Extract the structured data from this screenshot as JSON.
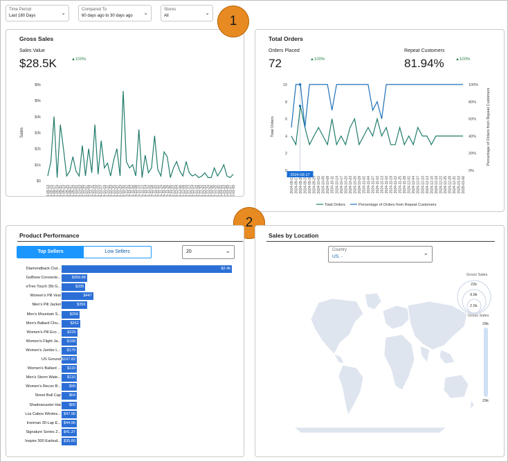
{
  "filters": [
    {
      "label": "Time Period",
      "value": "Last 180 Days"
    },
    {
      "label": "Compared To",
      "value": "60 days ago to 30 days ago"
    },
    {
      "label": "Stores",
      "value": "All"
    }
  ],
  "callouts": [
    "1",
    "2"
  ],
  "gross_sales": {
    "title": "Gross Sales",
    "metric_label": "Sales Value",
    "metric_value": "$28.5K",
    "delta": "▲100%",
    "y_label": "Sales"
  },
  "total_orders": {
    "title": "Total Orders",
    "orders_label": "Orders Placed",
    "orders_value": "72",
    "orders_delta": "▲100%",
    "repeat_label": "Repeat Customers",
    "repeat_value": "81.94%",
    "repeat_delta": "▲100%",
    "y_left_label": "Total Orders",
    "y_right_label": "Percentage of Orders from Repeat Customers",
    "tooltip": "2024-09-17",
    "legend": [
      "Total Orders",
      "Percentage of Orders from Repeat Customers"
    ]
  },
  "product_performance": {
    "title": "Product Performance",
    "tab_top": "Top Sellers",
    "tab_low": "Low Sellers",
    "count": "20",
    "items": [
      {
        "name": "Diamondback Clut...",
        "label": "$2.4k",
        "value": 2400
      },
      {
        "name": "GoBrew Connecte...",
        "label": "$359.88",
        "value": 359.88
      },
      {
        "name": "eTrex Touch 35t G...",
        "label": "$335",
        "value": 335
      },
      {
        "name": "Women's Pill Vest",
        "label": "$447",
        "value": 447
      },
      {
        "name": "Men's Pill Jacket",
        "label": "$356",
        "value": 356
      },
      {
        "name": "Men's Mountain S...",
        "label": "$256",
        "value": 256
      },
      {
        "name": "Men's Ballard Chu...",
        "label": "$262",
        "value": 262
      },
      {
        "name": "Women's Pill Eco ...",
        "label": "$220",
        "value": 220
      },
      {
        "name": "Women's Flight Ja...",
        "label": "$199",
        "value": 199
      },
      {
        "name": "Women's Jumbo L...",
        "label": "$179",
        "value": 179
      },
      {
        "name": "US Ground",
        "label": "$167.82",
        "value": 167.82
      },
      {
        "name": "Women's Ballard ...",
        "label": "$110",
        "value": 110
      },
      {
        "name": "Men's Storm Wate...",
        "label": "$110",
        "value": 110
      },
      {
        "name": "Women's Recon B...",
        "label": "$99",
        "value": 99
      },
      {
        "name": "Street Ball Cap",
        "label": "$64",
        "value": 64
      },
      {
        "name": "Shadowcaster Hat",
        "label": "$60",
        "value": 60
      },
      {
        "name": "Los Cabos Wireles...",
        "label": "$47.96",
        "value": 47.96
      },
      {
        "name": "Ironman 30-Lap E...",
        "label": "$44.96",
        "value": 44.96
      },
      {
        "name": "Signature Series 2...",
        "label": "$41.37",
        "value": 41.37
      },
      {
        "name": "Inspire 300 Earbud...",
        "label": "$35.80",
        "value": 35.8
      }
    ]
  },
  "sales_by_location": {
    "title": "Sales by Location",
    "country_label": "Country",
    "country_value": "US, -",
    "bubble_legend_title": "Gross Sales",
    "bubble_values": [
      "22k",
      "9.9k",
      "2.5k"
    ],
    "color_legend_title": "Gross Sales",
    "color_max": "29k",
    "color_min": "29k"
  },
  "chart_data": [
    {
      "type": "line",
      "title": "Gross Sales",
      "ylabel": "Sales",
      "y_ticks": [
        "$6k",
        "$5k",
        "$4k",
        "$3k",
        "$2k",
        "$1k",
        "$0"
      ],
      "y_tick_values": [
        6000,
        5000,
        4000,
        3000,
        2000,
        1000,
        0
      ],
      "ylim": [
        0,
        6000
      ],
      "x": [
        "2024-09-13",
        "2024-09-15",
        "2024-09-17",
        "2024-09-19",
        "2024-09-21",
        "2024-09-23",
        "2024-09-25",
        "2024-09-27",
        "2024-09-29",
        "2024-10-01",
        "2024-10-03",
        "2024-10-05",
        "2024-10-07",
        "2024-10-09",
        "2024-10-11",
        "2024-10-13",
        "2024-10-15",
        "2024-10-17",
        "2024-10-19",
        "2024-10-21",
        "2024-10-23",
        "2024-10-25",
        "2024-10-27",
        "2024-10-29",
        "2024-10-31",
        "2024-11-02",
        "2024-11-04",
        "2024-11-06",
        "2024-11-08",
        "2024-11-10",
        "2024-11-12",
        "2024-11-14",
        "2024-11-16",
        "2024-11-18",
        "2024-11-20",
        "2024-11-22",
        "2024-11-24",
        "2024-11-26",
        "2024-11-28",
        "2024-11-30",
        "2024-12-02",
        "2024-12-04",
        "2024-12-06",
        "2024-12-08",
        "2024-12-10",
        "2024-12-12",
        "2024-12-14",
        "2024-12-16",
        "2024-12-18",
        "2024-12-20",
        "2024-12-22",
        "2024-12-24",
        "2024-12-26",
        "2024-12-28",
        "2024-12-30",
        "2025-01-01",
        "2025-01-03",
        "2025-01-05",
        "2025-01-07",
        "2025-01-09"
      ],
      "x_tick_labels": [
        "2024-09-13",
        "2024-09-15",
        "2024-09-17",
        "2024-09-19",
        "2024-09-21",
        "2024-09-23",
        "2024-09-25",
        "2024-09-27",
        "2024-09-29",
        "2024-10-01",
        "2024-10-03",
        "2024-10-05",
        "2024-10-07",
        "2024-10-09",
        "2024-10-11",
        "2024-10-13",
        "2024-10-15",
        "2024-10-17",
        "2024-10-19",
        "2024-10-21",
        "2024-10-23",
        "2024-10-25",
        "2024-10-27",
        "2024-10-29",
        "2024-10-31",
        "2024-11-02",
        "2024-11-04",
        "2024-11-06",
        "2024-11-08",
        "2024-11-10",
        "2024-11-12",
        "2024-11-14",
        "2024-11-16",
        "2024-11-18",
        "2024-11-20",
        "2024-11-22",
        "2024-11-24",
        "2024-11-26",
        "2024-11-28",
        "2024-11-30",
        "2024-12-02",
        "2024-12-04",
        "2024-12-06",
        "2024-12-08",
        "2024-12-10",
        "2024-12-12",
        "2024-12-14",
        "2024-12-16",
        "2024-12-18",
        "2024-12-20",
        "2024-12-22",
        "2024-12-24",
        "2024-12-26",
        "2024-12-28",
        "2024-12-30",
        "2025-01-01",
        "2025-01-03",
        "2025-01-05",
        "2025-01-07",
        "2025-01-09"
      ],
      "series": [
        {
          "values": [
            300,
            1200,
            4000,
            200,
            3500,
            2000,
            300,
            600,
            1500,
            600,
            300,
            2200,
            300,
            2000,
            500,
            3500,
            400,
            2500,
            800,
            1100,
            300,
            1300,
            2000,
            300,
            5600,
            1200,
            800,
            1000,
            300,
            3200,
            200,
            1600,
            500,
            800,
            2800,
            700,
            300,
            1800,
            1500,
            200,
            800,
            1200,
            600,
            300,
            1200,
            500,
            300,
            400,
            200,
            300,
            500,
            200,
            200,
            800,
            300,
            600,
            1000,
            300,
            200,
            400
          ]
        }
      ],
      "grid": false
    },
    {
      "type": "line",
      "title": "Total Orders",
      "ylabel": "Total Orders",
      "y2label": "Percentage of Orders from Repeat Customers",
      "y_ticks": [
        "10",
        "8",
        "6",
        "4",
        "2",
        "0"
      ],
      "y_tick_values": [
        10,
        8,
        6,
        4,
        2,
        0
      ],
      "ylim": [
        0,
        10
      ],
      "y2_ticks": [
        "100%",
        "80%",
        "60%",
        "40%",
        "20%",
        "0%"
      ],
      "y2_tick_values": [
        100,
        80,
        60,
        40,
        20,
        0
      ],
      "y2lim": [
        0,
        100
      ],
      "x": [
        "2024-09-13",
        "2024-09-17",
        "2024-09-20",
        "2024-09-23",
        "2024-09-26",
        "2024-09-29",
        "2024-10-02",
        "2024-10-05",
        "2024-10-08",
        "2024-10-11",
        "2024-10-14",
        "2024-10-17",
        "2024-10-20",
        "2024-10-23",
        "2024-10-26",
        "2024-10-29",
        "2024-11-01",
        "2024-11-04",
        "2024-11-07",
        "2024-11-10",
        "2024-11-13",
        "2024-11-16",
        "2024-11-19",
        "2024-11-22",
        "2024-11-25",
        "2024-11-28",
        "2024-12-01",
        "2024-12-04",
        "2024-12-07",
        "2024-12-10",
        "2024-12-13",
        "2024-12-16",
        "2024-12-19",
        "2024-12-22",
        "2024-12-25",
        "2024-12-28",
        "2024-12-31",
        "2025-01-03",
        "2025-01-06"
      ],
      "x_tick_labels": [
        "2024-09-13",
        "2024-09-17",
        "2024-09-20",
        "2024-09-23",
        "2024-09-26",
        "2024-09-29",
        "2024-10-02",
        "2024-10-05",
        "2024-10-08",
        "2024-10-11",
        "2024-10-14",
        "2024-10-17",
        "2024-10-20",
        "2024-10-23",
        "2024-10-26",
        "2024-10-29",
        "2024-11-01",
        "2024-11-04",
        "2024-11-07",
        "2024-11-10",
        "2024-11-13",
        "2024-11-16",
        "2024-11-19",
        "2024-11-22",
        "2024-11-25",
        "2024-11-28",
        "2024-12-01",
        "2024-12-04",
        "2024-12-07",
        "2024-12-10",
        "2024-12-13",
        "2024-12-16",
        "2024-12-19",
        "2024-12-22",
        "2024-12-25",
        "2024-12-28",
        "2024-12-31",
        "2025-01-03",
        "2025-01-06"
      ],
      "series": [
        {
          "name": "Total Orders",
          "axis": "left",
          "values": [
            4,
            3,
            7.5,
            5,
            3,
            4,
            5,
            4,
            3,
            6,
            3,
            4,
            3,
            5,
            6,
            3,
            4,
            5,
            4,
            6,
            4,
            5,
            3,
            3,
            5,
            3,
            4,
            3,
            5,
            4,
            4,
            3,
            4,
            4,
            4,
            4,
            4,
            4,
            4
          ]
        },
        {
          "name": "Percentage of Orders from Repeat Customers",
          "axis": "right",
          "values": [
            50,
            100,
            100,
            50,
            100,
            100,
            100,
            100,
            100,
            70,
            100,
            100,
            100,
            100,
            100,
            100,
            100,
            100,
            70,
            80,
            60,
            100,
            100,
            100,
            100,
            100,
            100,
            100,
            100,
            100,
            100,
            100,
            100,
            100,
            100,
            100,
            100,
            100,
            100
          ]
        }
      ],
      "legend_position": "bottom"
    },
    {
      "type": "bar",
      "title": "Product Performance",
      "orientation": "horizontal",
      "categories": [
        "Diamondback Clut...",
        "GoBrew Connecte...",
        "eTrex Touch 35t G...",
        "Women's Pill Vest",
        "Men's Pill Jacket",
        "Men's Mountain S...",
        "Men's Ballard Chu...",
        "Women's Pill Eco ...",
        "Women's Flight Ja...",
        "Women's Jumbo L...",
        "US Ground",
        "Women's Ballard ...",
        "Men's Storm Wate...",
        "Women's Recon B...",
        "Street Ball Cap",
        "Shadowcaster Hat",
        "Los Cabos Wireles...",
        "Ironman 30-Lap E...",
        "Signature Series 2...",
        "Inspire 300 Earbud..."
      ],
      "values": [
        2400,
        359.88,
        335,
        447,
        356,
        256,
        262,
        220,
        199,
        179,
        167.82,
        110,
        110,
        99,
        64,
        60,
        47.96,
        44.96,
        41.37,
        35.8
      ],
      "data_labels": [
        "$2.4k",
        "$359.88",
        "$335",
        "$447",
        "$356",
        "$256",
        "$262",
        "$220",
        "$199",
        "$179",
        "$167.82",
        "$110",
        "$110",
        "$99",
        "$64",
        "$60",
        "$47.96",
        "$44.96",
        "$41.37",
        "$35.80"
      ]
    }
  ],
  "colors": {
    "accent": "#1b96ff",
    "line": "#1f7a6a",
    "bar": "#2b6fd6",
    "callout": "#e78a21",
    "map_land": "#dfe5ef",
    "positive": "#2e844a"
  }
}
